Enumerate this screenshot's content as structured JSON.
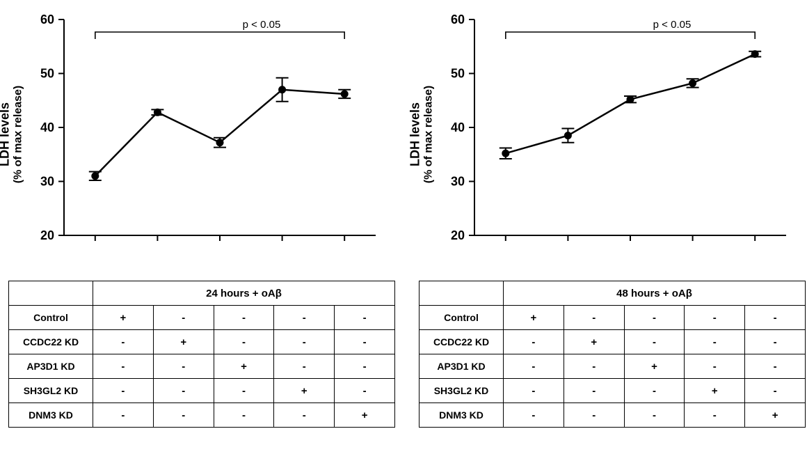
{
  "global": {
    "bg_color": "#ffffff",
    "line_color": "#000000",
    "text_color": "#000000",
    "marker_color": "#000000",
    "axis_line_width": 2,
    "series_line_width": 2.5,
    "marker_size": 5,
    "err_cap_width": 9,
    "err_line_width": 2,
    "ylabel_line1": "LDH levels",
    "ylabel_line2": "(% of max release)",
    "ylabel_fontsize": 18,
    "sig_label": "p < 0.05",
    "sig_fontsize": 15,
    "ylim": [
      20,
      60
    ],
    "ytick_step": 10,
    "yticks": [
      20,
      30,
      40,
      50,
      60
    ],
    "x_npoints": 5,
    "tick_len": 8
  },
  "panels": [
    {
      "id": "left",
      "header": "24 hours + oAβ",
      "x_labels": [
        "",
        "",
        "",
        "",
        ""
      ],
      "y": [
        31.0,
        42.8,
        37.2,
        47.0,
        46.2
      ],
      "y_err": [
        0.8,
        0.5,
        0.9,
        2.2,
        0.8
      ],
      "sig_span": [
        0,
        4
      ]
    },
    {
      "id": "right",
      "header": "48 hours + oAβ",
      "x_labels": [
        "",
        "",
        "",
        "",
        ""
      ],
      "y": [
        35.2,
        38.5,
        45.2,
        48.2,
        53.6
      ],
      "y_err": [
        1.0,
        1.3,
        0.6,
        0.8,
        0.5
      ],
      "sig_span": [
        0,
        4
      ]
    }
  ],
  "table": {
    "rows": [
      "Control",
      "CCDC22 KD",
      "AP3D1 KD",
      "SH3GL2 KD",
      "DNM3 KD"
    ],
    "matrix": [
      [
        "+",
        "-",
        "-",
        "-",
        "-"
      ],
      [
        "-",
        "+",
        "-",
        "-",
        "-"
      ],
      [
        "-",
        "-",
        "+",
        "-",
        "-"
      ],
      [
        "-",
        "-",
        "-",
        "+",
        "-"
      ],
      [
        "-",
        "-",
        "-",
        "-",
        "+"
      ]
    ]
  }
}
